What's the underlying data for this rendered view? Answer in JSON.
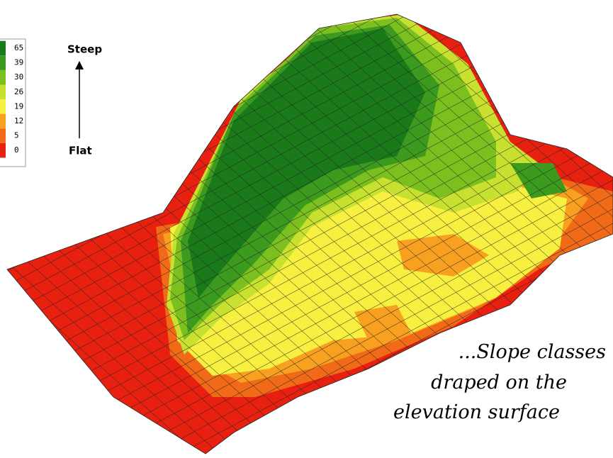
{
  "legend": {
    "items": [
      {
        "label": 65,
        "color": "#1a7a1a"
      },
      {
        "label": 39,
        "color": "#3c9a1e"
      },
      {
        "label": 30,
        "color": "#7cc020"
      },
      {
        "label": 26,
        "color": "#c8e030"
      },
      {
        "label": 19,
        "color": "#f8f040"
      },
      {
        "label": 12,
        "color": "#f8a020"
      },
      {
        "label": 5,
        "color": "#f06a18"
      },
      {
        "label": 0,
        "color": "#e82010"
      }
    ]
  },
  "arrow": {
    "top": "Steep",
    "bottom": "Flat"
  },
  "caption": {
    "lines": [
      "...Slope classes",
      "draped on the",
      "elevation surface"
    ]
  }
}
